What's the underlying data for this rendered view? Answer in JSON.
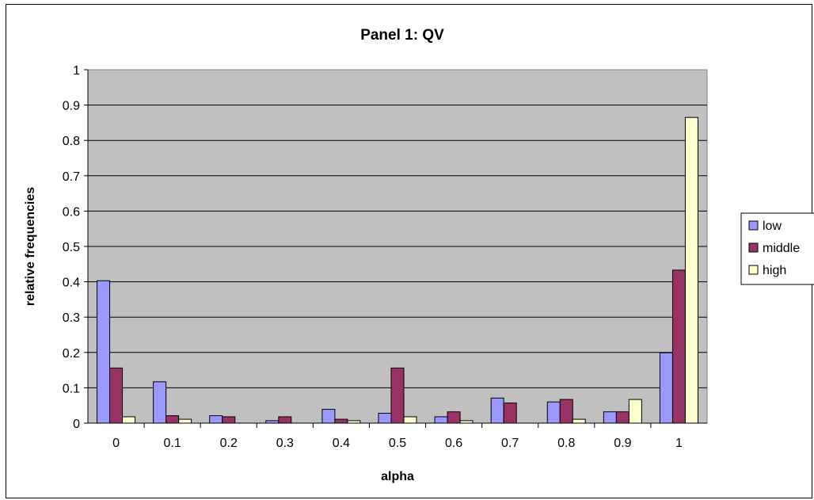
{
  "chart_data": {
    "type": "bar",
    "title": "Panel 1: QV",
    "xlabel": "alpha",
    "ylabel": "relative frequencies",
    "categories": [
      "0",
      "0.1",
      "0.2",
      "0.3",
      "0.4",
      "0.5",
      "0.6",
      "0.7",
      "0.8",
      "0.9",
      "1"
    ],
    "ylim": [
      0,
      1
    ],
    "yticks": [
      "0",
      "0.1",
      "0.2",
      "0.3",
      "0.4",
      "0.5",
      "0.6",
      "0.7",
      "0.8",
      "0.9",
      "1"
    ],
    "grid": true,
    "legend_position": "right",
    "plot_background": "#c0c0c0",
    "series": [
      {
        "name": "low",
        "color": "#9999ff",
        "values": [
          0.403,
          0.117,
          0.021,
          0.007,
          0.039,
          0.028,
          0.018,
          0.071,
          0.06,
          0.032,
          0.199
        ]
      },
      {
        "name": "middle",
        "color": "#993366",
        "values": [
          0.156,
          0.021,
          0.018,
          0.018,
          0.011,
          0.156,
          0.032,
          0.057,
          0.067,
          0.032,
          0.433
        ]
      },
      {
        "name": "high",
        "color": "#ffffcc",
        "values": [
          0.018,
          0.011,
          0.0,
          0.0,
          0.007,
          0.018,
          0.007,
          0.0,
          0.011,
          0.067,
          0.865
        ]
      }
    ]
  }
}
